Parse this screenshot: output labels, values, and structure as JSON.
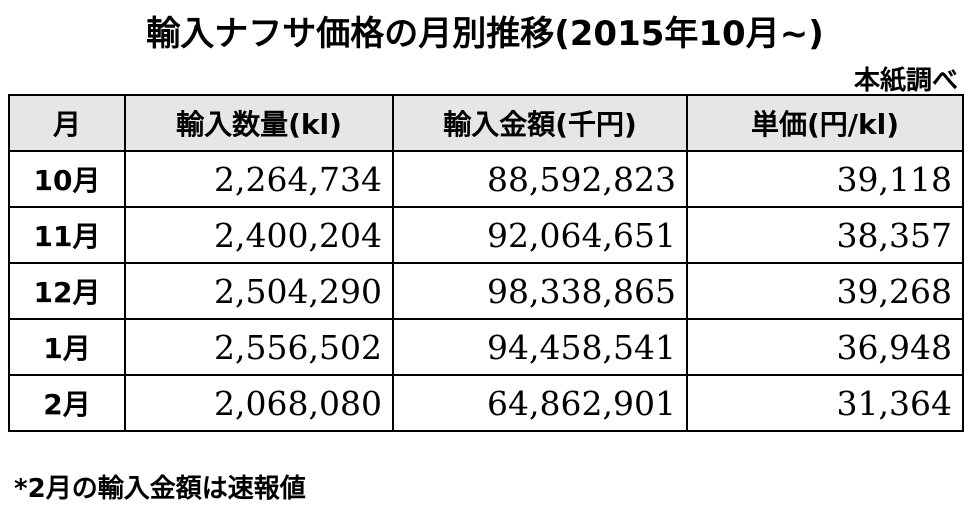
{
  "header": {
    "title": "輸入ナフサ価格の月別推移(2015年10月~)",
    "source": "本紙調べ"
  },
  "table": {
    "columns": [
      "月",
      "輸入数量(kl)",
      "輸入金額(千円)",
      "単価(円/kl)"
    ],
    "rows": [
      [
        "10月",
        "2,264,734",
        "88,592,823",
        "39,118"
      ],
      [
        "11月",
        "2,400,204",
        "92,064,651",
        "38,357"
      ],
      [
        "12月",
        "2,504,290",
        "98,338,865",
        "39,268"
      ],
      [
        "1月",
        "2,556,502",
        "94,458,541",
        "36,948"
      ],
      [
        "2月",
        "2,068,080",
        "64,862,901",
        "31,364"
      ]
    ]
  },
  "footnote": "*2月の輸入金額は速報値"
}
